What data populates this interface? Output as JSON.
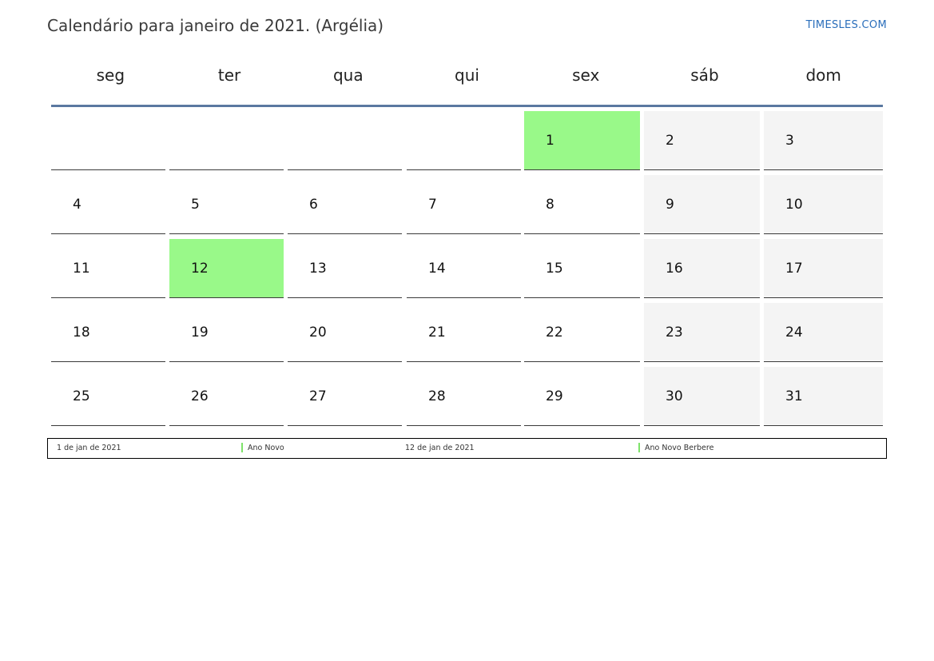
{
  "header": {
    "title": "Calendário para janeiro de 2021. (Argélia)",
    "brand": "TIMESLES.COM"
  },
  "weekdays": [
    "seg",
    "ter",
    "qua",
    "qui",
    "sex",
    "sáb",
    "dom"
  ],
  "weeks": [
    [
      "",
      "",
      "",
      "",
      "1",
      "2",
      "3"
    ],
    [
      "4",
      "5",
      "6",
      "7",
      "8",
      "9",
      "10"
    ],
    [
      "11",
      "12",
      "13",
      "14",
      "15",
      "16",
      "17"
    ],
    [
      "18",
      "19",
      "20",
      "21",
      "22",
      "23",
      "24"
    ],
    [
      "25",
      "26",
      "27",
      "28",
      "29",
      "30",
      "31"
    ]
  ],
  "holidays": [
    {
      "date": "1 de jan de 2021",
      "name": "Ano Novo"
    },
    {
      "date": "12 de jan de 2021",
      "name": "Ano Novo Berbere"
    }
  ],
  "colors": {
    "holiday": "#99f989",
    "weekend": "#f4f4f4",
    "header_rule": "#5a78a0",
    "legend_marker": "#7ee36a",
    "brand": "#2a6ebb"
  }
}
